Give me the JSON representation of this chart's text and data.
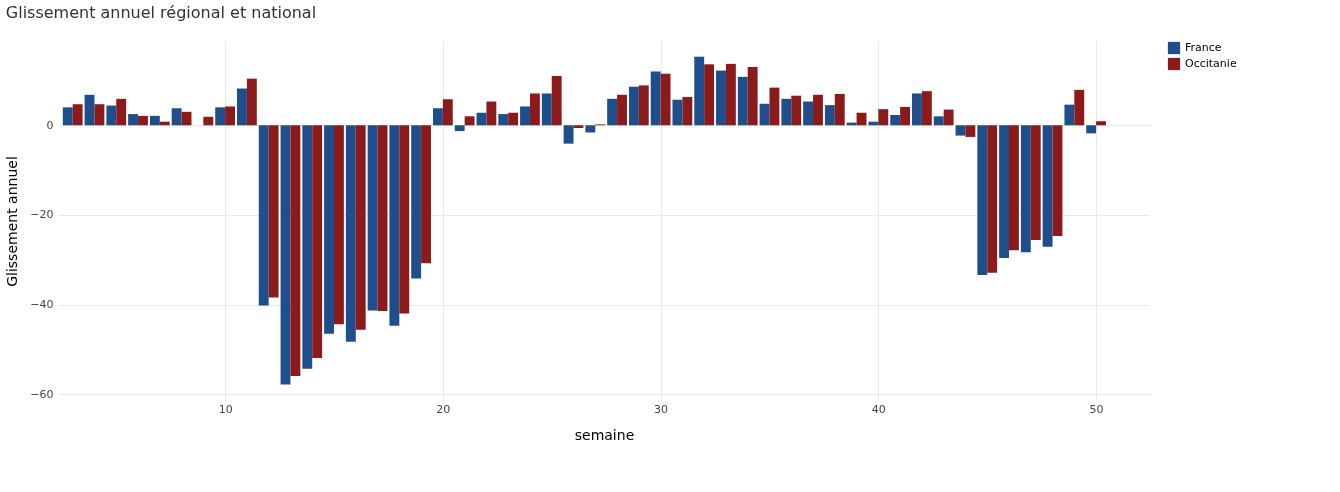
{
  "chart_data": {
    "type": "bar",
    "title": "Glissement annuel régional et national",
    "xlabel": "semaine",
    "ylabel": "Glissement annuel",
    "x": [
      3,
      4,
      5,
      6,
      7,
      8,
      9,
      10,
      11,
      12,
      13,
      14,
      15,
      16,
      17,
      18,
      19,
      20,
      21,
      22,
      23,
      24,
      25,
      26,
      27,
      28,
      29,
      30,
      31,
      32,
      33,
      34,
      35,
      36,
      37,
      38,
      39,
      40,
      41,
      42,
      43,
      44,
      45,
      46,
      47,
      48,
      49,
      50
    ],
    "series": [
      {
        "name": "France",
        "color": "#1f4e8c",
        "values": [
          4.0,
          6.8,
          4.4,
          2.5,
          2.1,
          3.8,
          null,
          4.0,
          8.2,
          -40.2,
          -57.8,
          -54.3,
          -46.5,
          -48.3,
          -41.3,
          -44.7,
          -34.2,
          3.8,
          -1.3,
          2.8,
          2.5,
          4.2,
          7.1,
          -4.1,
          -1.6,
          5.9,
          8.6,
          12.0,
          5.7,
          15.3,
          12.2,
          10.8,
          4.8,
          5.9,
          5.3,
          4.5,
          0.6,
          0.8,
          2.3,
          7.1,
          2.0,
          -2.3,
          -33.4,
          -29.6,
          -28.3,
          -27.1,
          4.6,
          -1.8
        ]
      },
      {
        "name": "Occitanie",
        "color": "#8b1a1a",
        "values": [
          4.7,
          4.7,
          5.9,
          2.1,
          0.8,
          3.0,
          1.9,
          4.2,
          10.4,
          -38.4,
          -55.9,
          -51.9,
          -44.4,
          -45.6,
          -41.4,
          -42.0,
          -30.8,
          5.8,
          2.0,
          5.3,
          2.8,
          7.1,
          11.0,
          -0.6,
          0.2,
          6.8,
          8.9,
          11.5,
          6.3,
          13.6,
          13.7,
          13.0,
          8.4,
          6.6,
          6.8,
          7.0,
          2.8,
          3.6,
          4.1,
          7.6,
          3.5,
          -2.6,
          -32.9,
          -27.9,
          -25.6,
          -24.7,
          7.9,
          0.9
        ]
      }
    ],
    "xlim": [
      2.6,
      52.2
    ],
    "ylim": [
      -61.5,
      18.8
    ],
    "xticks": [
      10,
      20,
      30,
      40,
      50
    ],
    "yticks": [
      -60,
      -40,
      -20,
      0
    ],
    "grid": true,
    "legend": "top right"
  }
}
